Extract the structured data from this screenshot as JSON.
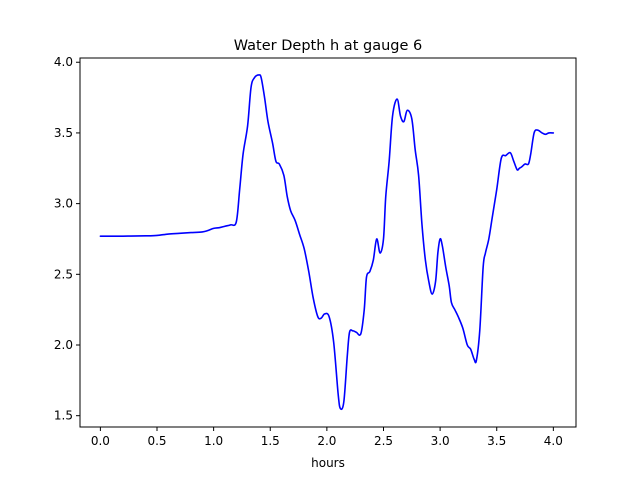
{
  "chart_data": {
    "type": "line",
    "title": "Water Depth h at gauge 6",
    "xlabel": "hours",
    "ylabel": "",
    "xlim": [
      -0.18,
      4.2
    ],
    "ylim": [
      1.42,
      4.03
    ],
    "xticks": [
      0.0,
      0.5,
      1.0,
      1.5,
      2.0,
      2.5,
      3.0,
      3.5,
      4.0
    ],
    "xtick_labels": [
      "0.0",
      "0.5",
      "1.0",
      "1.5",
      "2.0",
      "2.5",
      "3.0",
      "3.5",
      "4.0"
    ],
    "yticks": [
      1.5,
      2.0,
      2.5,
      3.0,
      3.5,
      4.0
    ],
    "ytick_labels": [
      "1.5",
      "2.0",
      "2.5",
      "3.0",
      "3.5",
      "4.0"
    ],
    "grid": false,
    "legend": "none",
    "series": [
      {
        "color": "#0000ff",
        "x": [
          0.0,
          0.2,
          0.4,
          0.5,
          0.6,
          0.7,
          0.8,
          0.9,
          0.95,
          1.0,
          1.05,
          1.1,
          1.15,
          1.2,
          1.23,
          1.26,
          1.3,
          1.33,
          1.36,
          1.4,
          1.42,
          1.45,
          1.48,
          1.52,
          1.55,
          1.58,
          1.62,
          1.65,
          1.68,
          1.72,
          1.76,
          1.8,
          1.84,
          1.88,
          1.92,
          1.95,
          1.98,
          2.02,
          2.06,
          2.1,
          2.12,
          2.15,
          2.18,
          2.2,
          2.23,
          2.26,
          2.3,
          2.33,
          2.35,
          2.38,
          2.41,
          2.44,
          2.47,
          2.5,
          2.52,
          2.55,
          2.58,
          2.62,
          2.65,
          2.68,
          2.71,
          2.75,
          2.78,
          2.81,
          2.84,
          2.87,
          2.9,
          2.93,
          2.96,
          2.98,
          3.0,
          3.02,
          3.05,
          3.08,
          3.1,
          3.13,
          3.16,
          3.2,
          3.24,
          3.27,
          3.3,
          3.32,
          3.35,
          3.38,
          3.4,
          3.43,
          3.46,
          3.5,
          3.54,
          3.58,
          3.62,
          3.65,
          3.68,
          3.7,
          3.72,
          3.75,
          3.78,
          3.8,
          3.83,
          3.86,
          3.9,
          3.93,
          3.96,
          4.0
        ],
        "y": [
          2.77,
          2.77,
          2.772,
          2.775,
          2.785,
          2.79,
          2.795,
          2.8,
          2.81,
          2.825,
          2.83,
          2.84,
          2.85,
          2.87,
          3.1,
          3.35,
          3.55,
          3.82,
          3.89,
          3.91,
          3.89,
          3.75,
          3.58,
          3.43,
          3.3,
          3.28,
          3.2,
          3.05,
          2.95,
          2.88,
          2.78,
          2.68,
          2.52,
          2.33,
          2.2,
          2.19,
          2.22,
          2.2,
          2.02,
          1.65,
          1.55,
          1.6,
          1.92,
          2.09,
          2.1,
          2.09,
          2.08,
          2.25,
          2.48,
          2.52,
          2.6,
          2.75,
          2.65,
          2.75,
          3.05,
          3.3,
          3.62,
          3.74,
          3.62,
          3.58,
          3.66,
          3.6,
          3.38,
          3.2,
          2.85,
          2.6,
          2.45,
          2.36,
          2.45,
          2.65,
          2.75,
          2.7,
          2.55,
          2.42,
          2.3,
          2.25,
          2.2,
          2.12,
          2.0,
          1.97,
          1.9,
          1.89,
          2.1,
          2.55,
          2.65,
          2.75,
          2.9,
          3.1,
          3.32,
          3.34,
          3.36,
          3.3,
          3.24,
          3.25,
          3.26,
          3.28,
          3.28,
          3.35,
          3.5,
          3.52,
          3.5,
          3.49,
          3.5,
          3.5
        ]
      }
    ]
  }
}
